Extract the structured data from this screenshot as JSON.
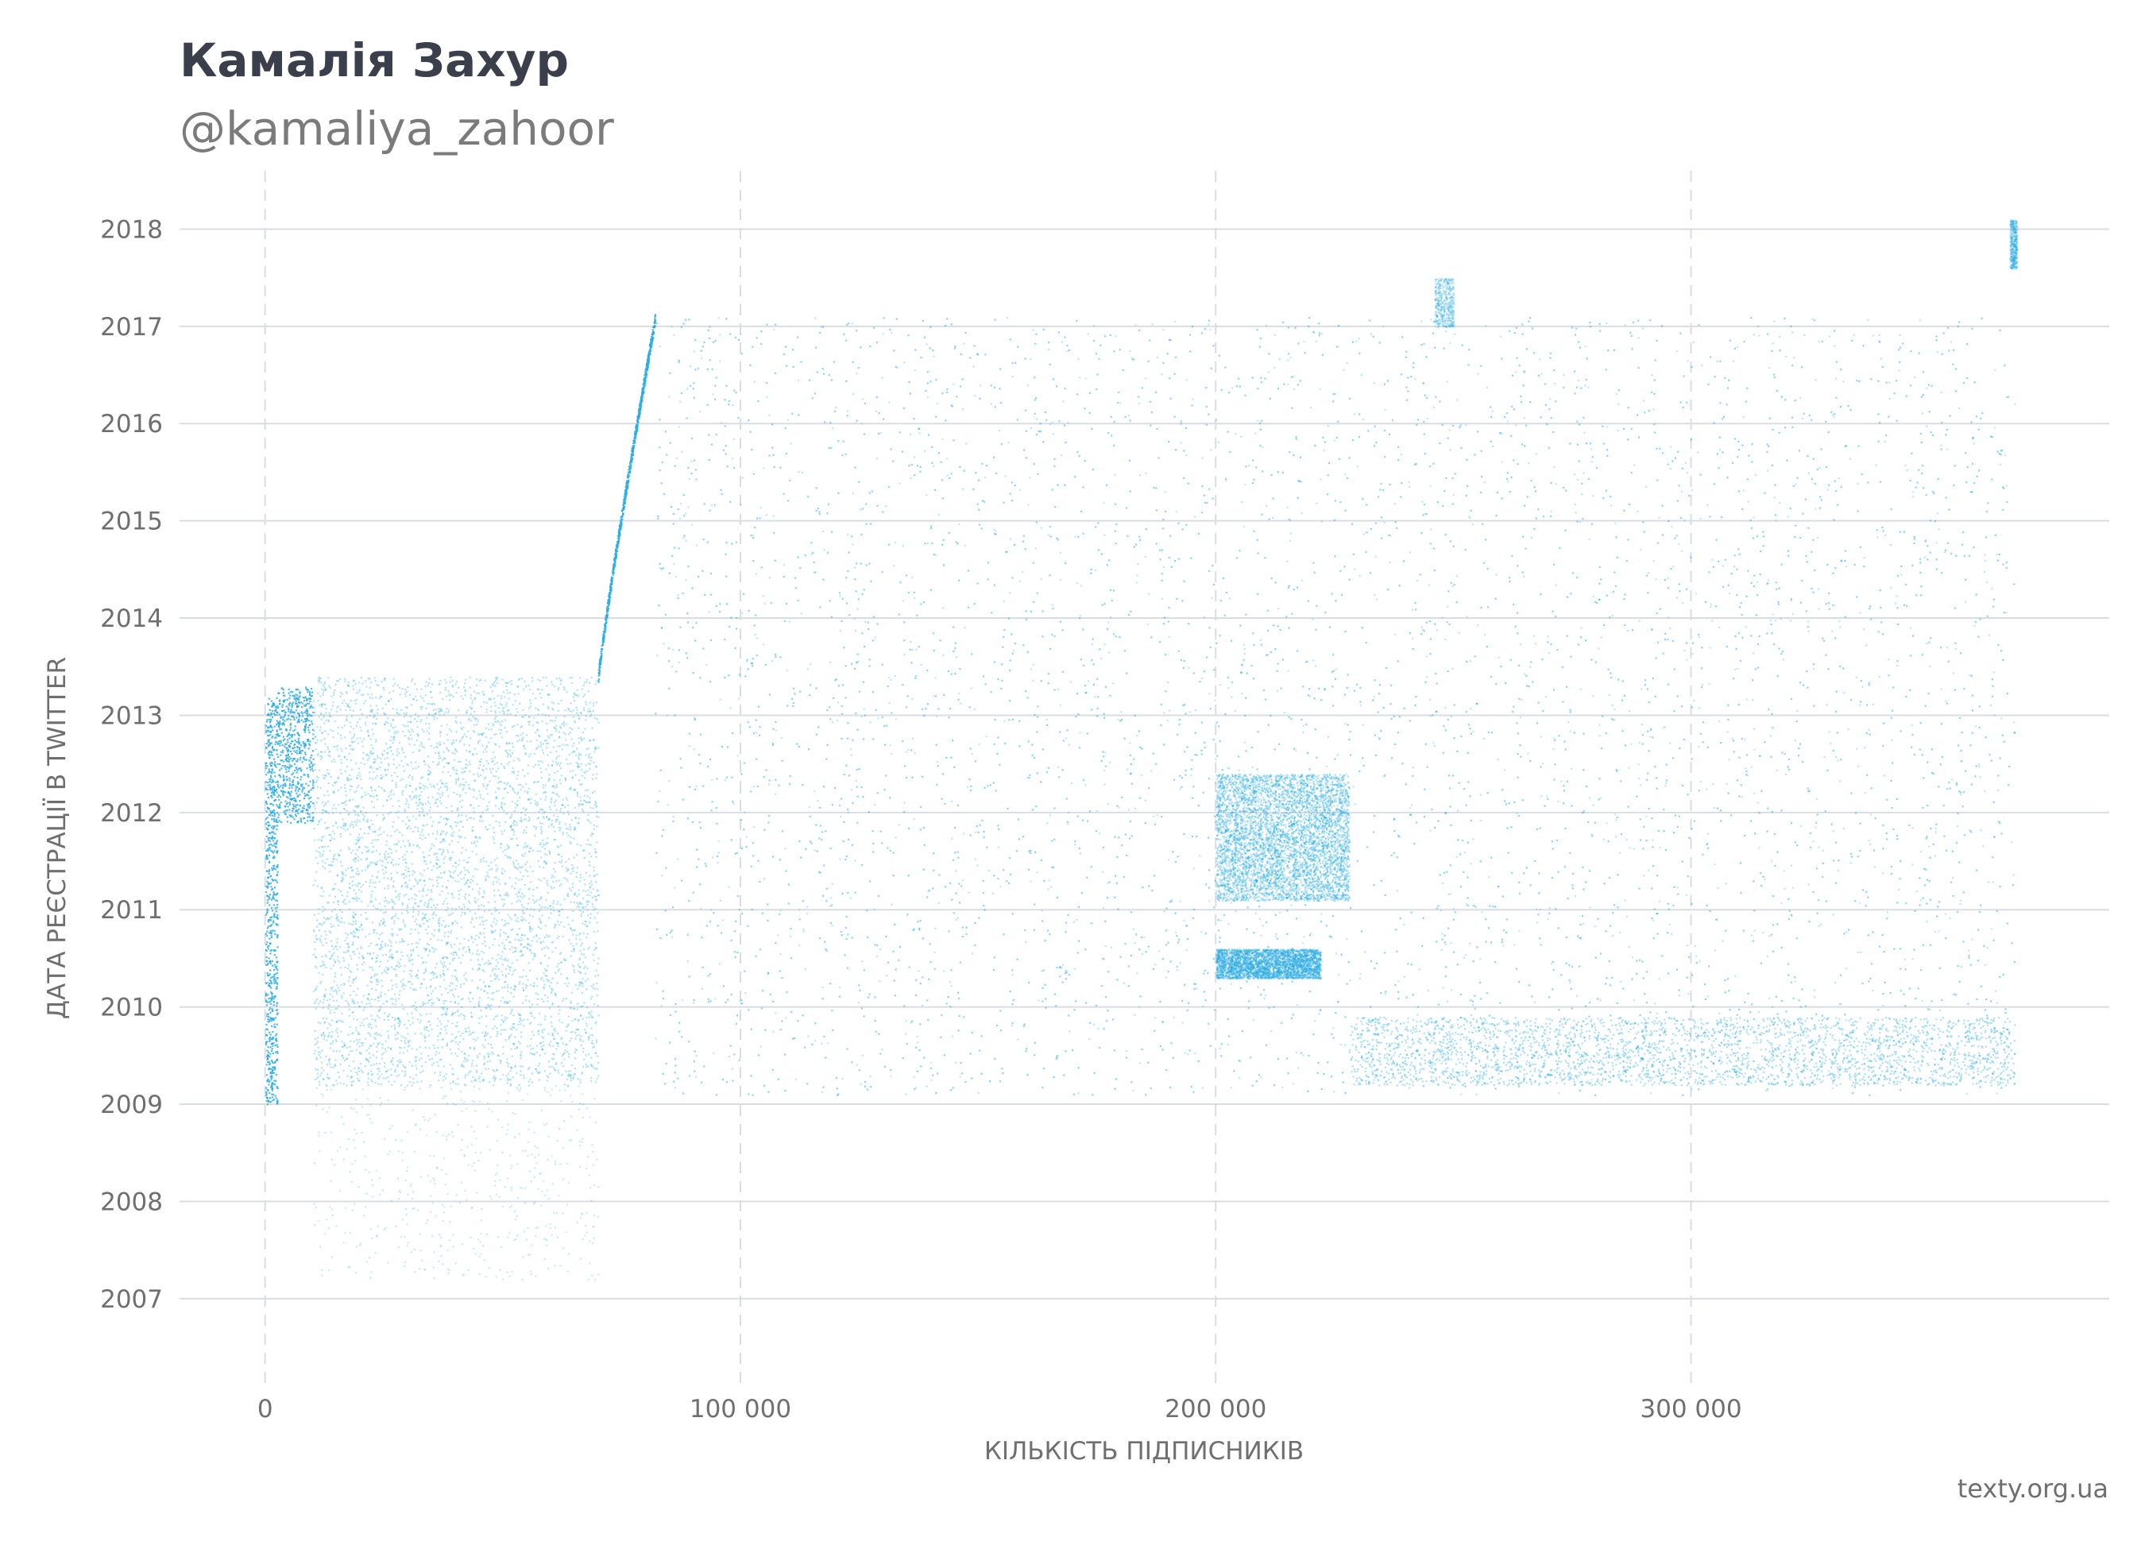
{
  "header": {
    "title": "Камалія Захур",
    "subtitle": "@kamaliya_zahoor"
  },
  "footer": {
    "source": "texty.org.ua"
  },
  "colors": {
    "points": "#29abe2",
    "grid": "#d9dde3",
    "text": "#6f6f6f",
    "title": "#3a3f4b"
  },
  "chart_data": {
    "type": "scatter",
    "xlabel": "КІЛЬКІСТЬ ПІДПИСНИКІВ",
    "ylabel": "ДАТА РЕЄСТРАЦІЇ В TWITTER",
    "xlim": [
      -18000,
      388000
    ],
    "ylim": [
      2006.1,
      2018.6
    ],
    "x_ticks": [
      0,
      100000,
      200000,
      300000
    ],
    "x_tick_labels": [
      "0",
      "100 000",
      "200 000",
      "300 000"
    ],
    "y_ticks": [
      2007,
      2008,
      2009,
      2010,
      2011,
      2012,
      2013,
      2014,
      2015,
      2016,
      2017,
      2018
    ],
    "y_tick_labels": [
      "2007",
      "2008",
      "2009",
      "2010",
      "2011",
      "2012",
      "2013",
      "2014",
      "2015",
      "2016",
      "2017",
      "2018"
    ],
    "grid": {
      "horizontal": "solid",
      "vertical": "dashed"
    },
    "legend": "none",
    "series": [
      {
        "regions": [
          {
            "x": [
              0,
              2500
            ],
            "y": [
              2009.0,
              2013.2
            ],
            "density": "dense line"
          },
          {
            "x": [
              2500,
              10000
            ],
            "y": [
              2011.9,
              2013.3
            ],
            "density": "dense steps"
          },
          {
            "x": [
              10000,
              70000
            ],
            "y": [
              2009.2,
              2013.4
            ],
            "density": "high"
          },
          {
            "x": [
              10000,
              70000
            ],
            "y": [
              2007.2,
              2009.2
            ],
            "density": "sparse"
          },
          {
            "x": [
              70000,
              82000
            ],
            "y": [
              2013.4,
              2017.1
            ],
            "density": "dense rising line"
          },
          {
            "x": [
              82000,
              368000
            ],
            "y": [
              2009.1,
              2017.1
            ],
            "density": "medium"
          },
          {
            "x": [
              200000,
              228000
            ],
            "y": [
              2011.1,
              2012.4
            ],
            "density": "high"
          },
          {
            "x": [
              200000,
              222000
            ],
            "y": [
              2010.3,
              2010.6
            ],
            "density": "high band"
          },
          {
            "x": [
              228000,
              368000
            ],
            "y": [
              2009.2,
              2009.9
            ],
            "density": "high band"
          },
          {
            "x": [
              246000,
              250000
            ],
            "y": [
              2017.0,
              2017.5
            ],
            "density": "sparse"
          },
          {
            "x": [
              367000,
              368500
            ],
            "y": [
              2017.6,
              2018.1
            ],
            "density": "sparse"
          }
        ]
      }
    ]
  }
}
